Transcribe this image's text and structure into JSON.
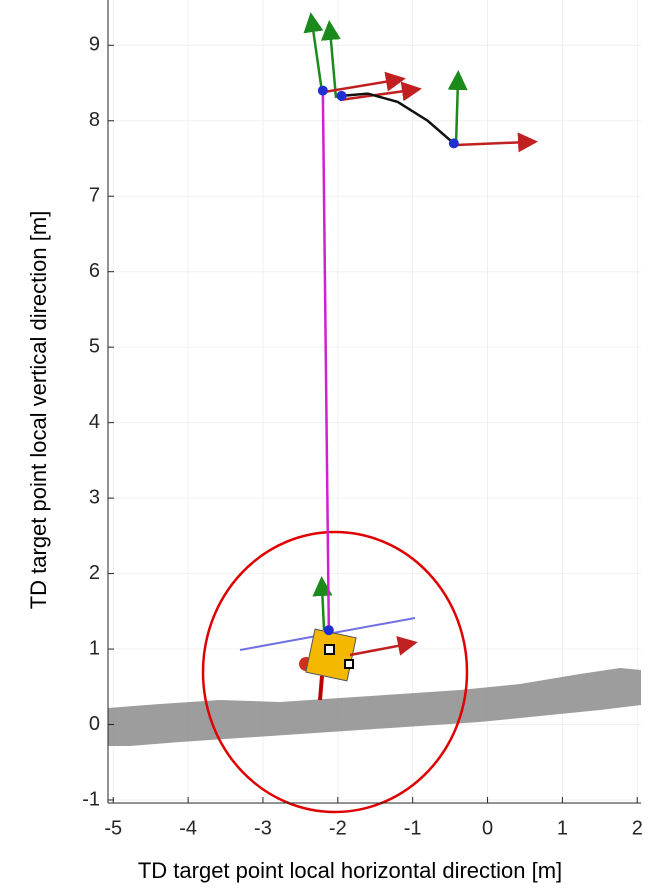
{
  "chart_data": {
    "type": "line",
    "xlabel": "TD target point local horizontal direction [m]",
    "ylabel": "TD target point local vertical direction [m]",
    "series": [
      {
        "color": "#d020d0",
        "x": [
          -2.2,
          -2.12
        ],
        "values": [
          8.4,
          1.25
        ]
      },
      {
        "color": "#111111",
        "x": [
          -1.95,
          -1.6,
          -1.2,
          -0.8,
          -0.45
        ],
        "values": [
          8.33,
          8.36,
          8.25,
          8.0,
          7.7
        ]
      }
    ],
    "xlim": [
      -5.07,
      2.05
    ],
    "ylim": [
      -1.04,
      9.6
    ],
    "xticks": [
      -5,
      -4,
      -3,
      -2,
      -1,
      0,
      1,
      2
    ],
    "yticks": [
      -1,
      0,
      1,
      2,
      3,
      4,
      5,
      6,
      7,
      8,
      9
    ],
    "grid": true
  }
}
